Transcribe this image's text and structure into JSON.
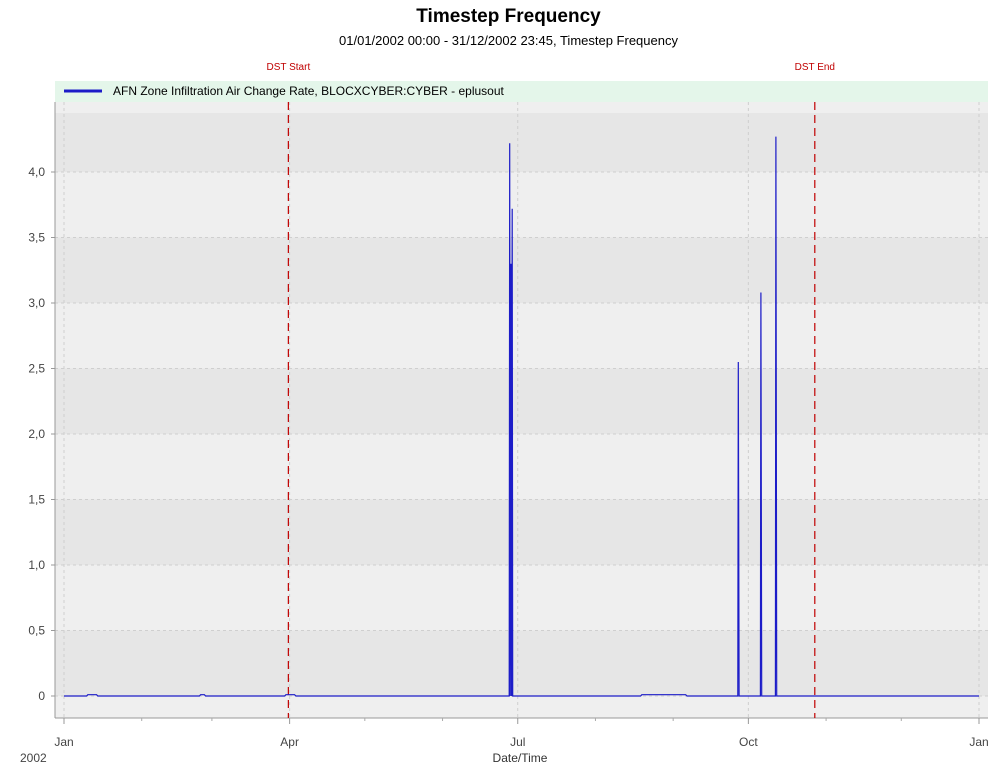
{
  "chart_data": {
    "type": "line",
    "title": "Timestep Frequency",
    "subtitle": "01/01/2002 00:00 - 31/12/2002 23:45, Timestep Frequency",
    "xlabel": "Date/Time",
    "ylabel": "",
    "x_year_label": "2002",
    "x_ticks": [
      {
        "label": "Jan",
        "day": 0
      },
      {
        "label": "Apr",
        "day": 90
      },
      {
        "label": "Jul",
        "day": 181
      },
      {
        "label": "Oct",
        "day": 273
      },
      {
        "label": "Jan",
        "day": 365
      }
    ],
    "y_ticks": [
      "0",
      "0,5",
      "1,0",
      "1,5",
      "2,0",
      "2,5",
      "3,0",
      "3,5",
      "4,0"
    ],
    "y_tick_values": [
      0,
      0.5,
      1.0,
      1.5,
      2.0,
      2.5,
      3.0,
      3.5,
      4.0
    ],
    "xlim": [
      0,
      365
    ],
    "ylim": [
      -0.1,
      4.45
    ],
    "grid": true,
    "legend_position": "top",
    "markers": [
      {
        "label": "DST Start",
        "day": 89.5
      },
      {
        "label": "DST End",
        "day": 299.5
      }
    ],
    "series": [
      {
        "name": "AFN Zone Infiltration Air Change Rate, BLOCXCYBER:CYBER - eplusout",
        "color": "#1c1cc8",
        "x": [
          0,
          9,
          9.5,
          13,
          13.5,
          54,
          54.5,
          56,
          56.5,
          88,
          88.5,
          92,
          92.5,
          177.6,
          177.8,
          178.0,
          178.3,
          178.5,
          178.8,
          179.0,
          179.3,
          179.6,
          230,
          230.5,
          248,
          248.5,
          268.8,
          269.0,
          269.3,
          277.8,
          278.0,
          278.3,
          283.8,
          284.0,
          284.3,
          365
        ],
        "y": [
          0,
          0,
          0.01,
          0.01,
          0,
          0,
          0.01,
          0.01,
          0,
          0,
          0.01,
          0.01,
          0,
          0,
          4.22,
          0,
          3.3,
          0,
          3.72,
          0,
          0,
          0,
          0,
          0.01,
          0.01,
          0,
          0,
          2.55,
          0,
          0,
          3.08,
          0,
          0,
          4.27,
          0,
          0
        ]
      }
    ]
  },
  "colors": {
    "plot_band_dark": "#e6e6e6",
    "plot_band_light": "#efefef",
    "legend_bg": "#e4f6ea",
    "dst_line": "#c00000",
    "series": "#1c1cc8"
  }
}
